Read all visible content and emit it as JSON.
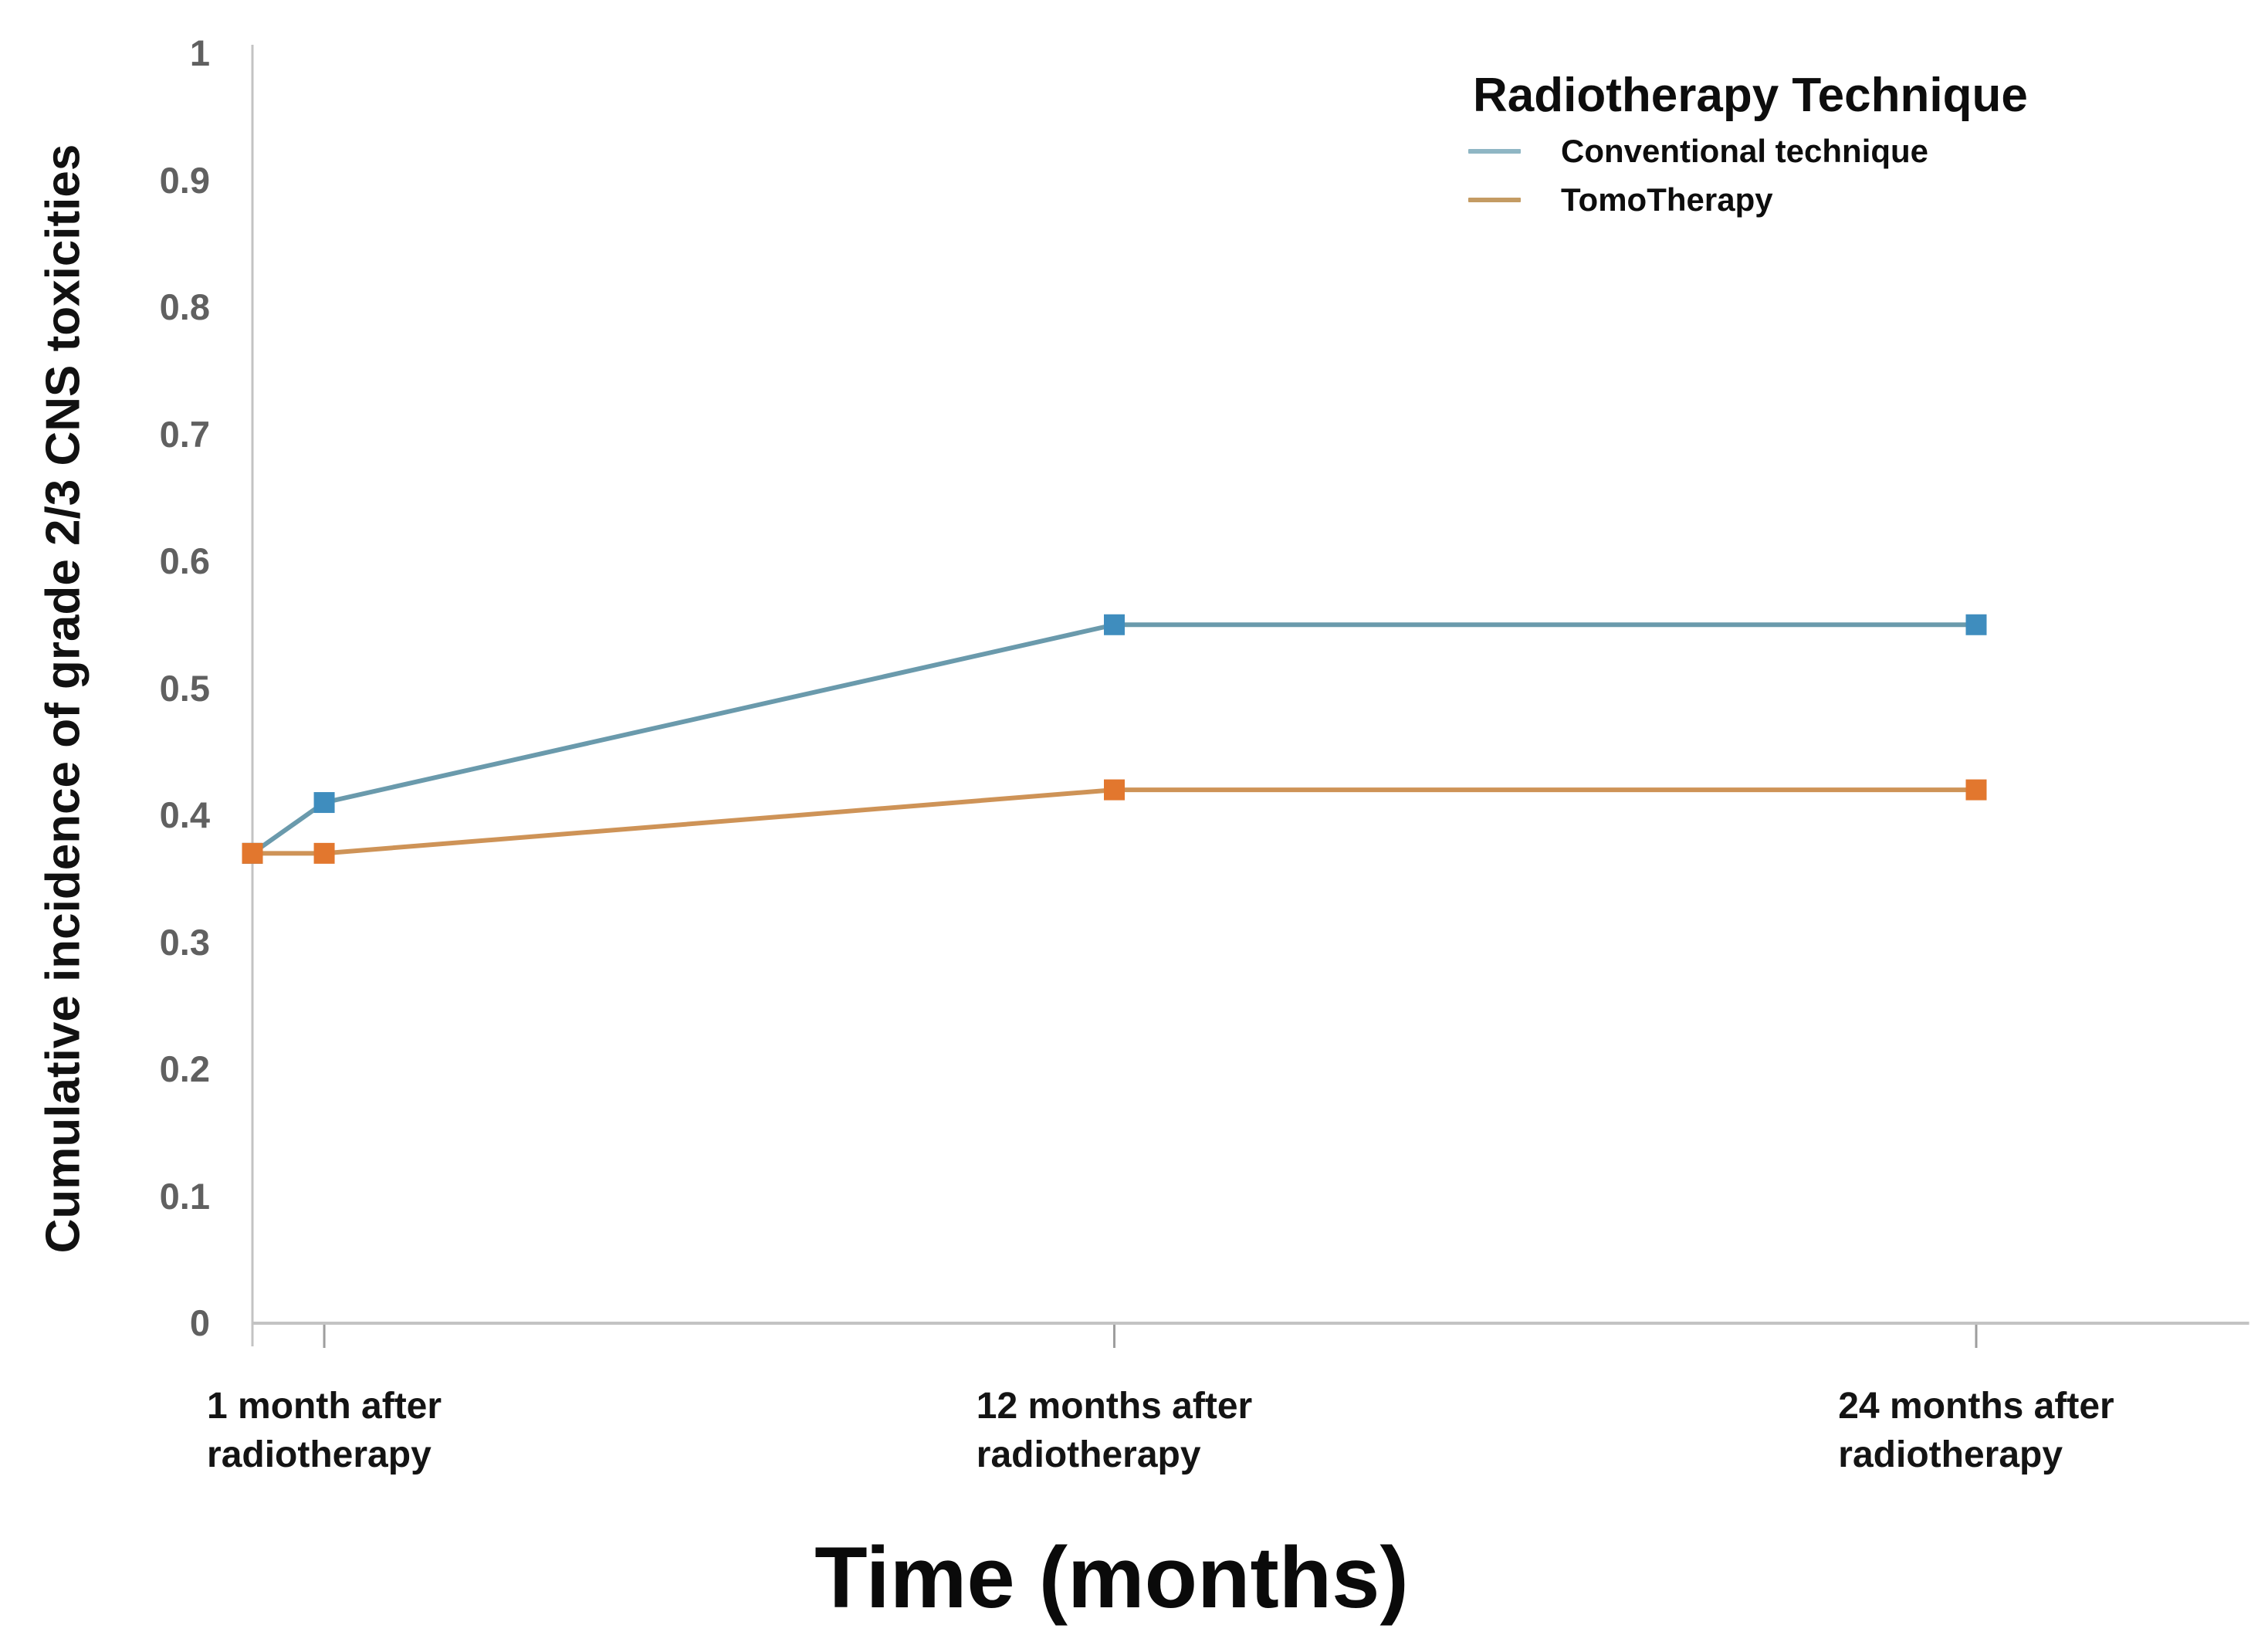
{
  "chart_data": {
    "type": "line",
    "title": "",
    "xlabel": "Time (months)",
    "ylabel": "Cumulative incidence of grade 2/3 CNS toxicities",
    "x_months": [
      0,
      1,
      12,
      24
    ],
    "series": [
      {
        "name": "Conventional technique",
        "values": [
          0.37,
          0.41,
          0.55,
          0.55
        ],
        "line_color": "#6a9aac",
        "marker_color": "#3f8dbe",
        "marker": "square"
      },
      {
        "name": "TomoTherapy",
        "values": [
          0.37,
          0.37,
          0.42,
          0.42
        ],
        "line_color": "#ce9357",
        "marker_color": "#e2772e",
        "marker": "square"
      }
    ],
    "xlim": [
      0,
      27.8
    ],
    "ylim": [
      0,
      1
    ],
    "grid": false,
    "y_ticks": [
      {
        "value": 0,
        "label": "0"
      },
      {
        "value": 0.1,
        "label": "0.1"
      },
      {
        "value": 0.2,
        "label": "0.2"
      },
      {
        "value": 0.3,
        "label": "0.3"
      },
      {
        "value": 0.4,
        "label": "0.4"
      },
      {
        "value": 0.5,
        "label": "0.5"
      },
      {
        "value": 0.6,
        "label": "0.6"
      },
      {
        "value": 0.7,
        "label": "0.7"
      },
      {
        "value": 0.8,
        "label": "0.8"
      },
      {
        "value": 0.9,
        "label": "0.9"
      },
      {
        "value": 1,
        "label": "1"
      }
    ],
    "x_categories": [
      {
        "month": 1,
        "line1": "1 month after",
        "line2": "radiotherapy"
      },
      {
        "month": 12,
        "line1": "12 months after",
        "line2": "radiotherapy"
      },
      {
        "month": 24,
        "line1": "24 months after",
        "line2": "radiotherapy"
      }
    ],
    "legend": {
      "title": "Radiotherapy Technique",
      "position": "top-right",
      "items": [
        {
          "label": "Conventional technique",
          "swatch_color": "#8fb6c4"
        },
        {
          "label": "TomoTherapy",
          "swatch_color": "#c49b63"
        }
      ]
    },
    "colors": {
      "axis_line": "#c3c3c3",
      "tick_label": "#606060",
      "text": "#111111"
    }
  }
}
